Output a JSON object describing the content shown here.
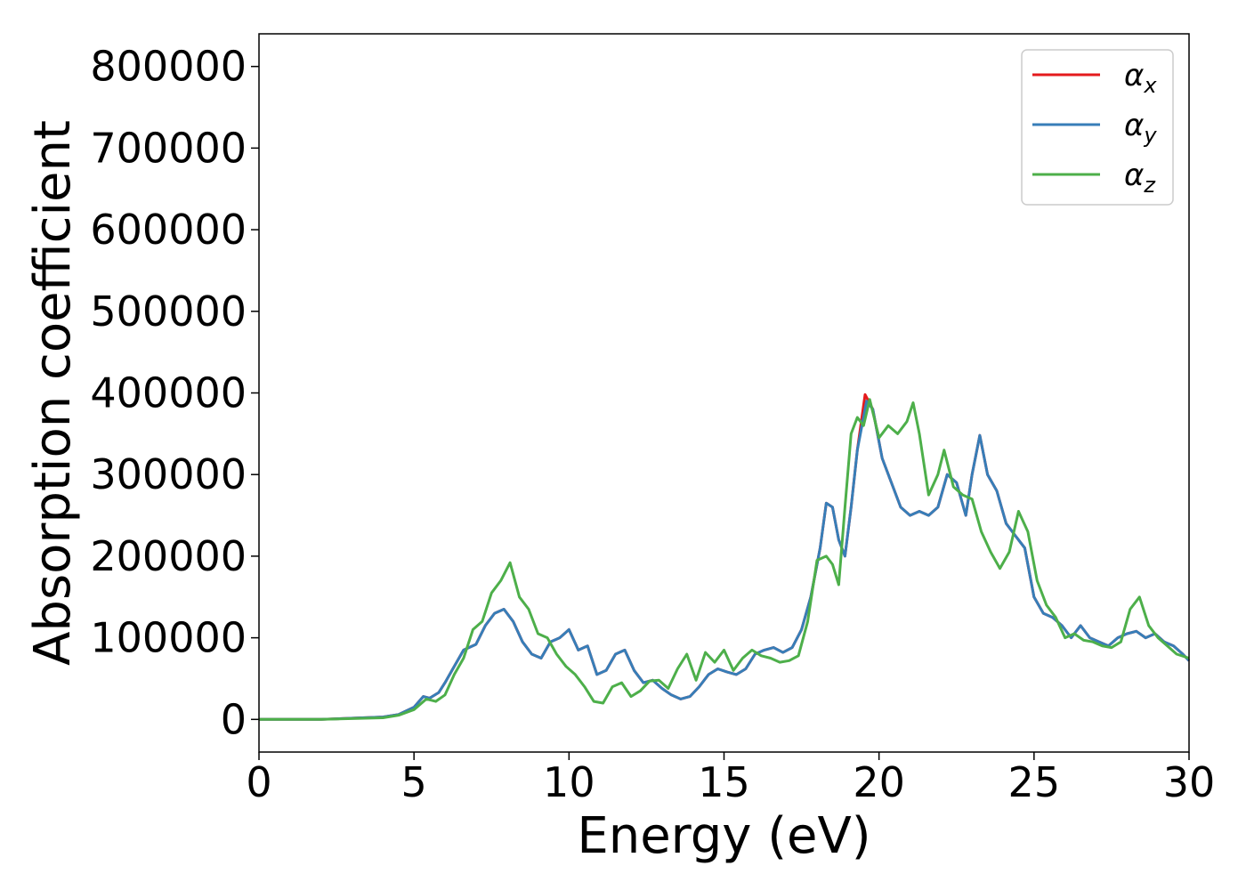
{
  "chart_data": {
    "type": "line",
    "xlabel": "Energy (eV)",
    "ylabel": "Absorption coefficient",
    "xlim": [
      0,
      30
    ],
    "ylim": [
      -40000,
      840000
    ],
    "xticks": [
      0,
      5,
      10,
      15,
      20,
      25,
      30
    ],
    "xtick_labels": [
      "0",
      "5",
      "10",
      "15",
      "20",
      "25",
      "30"
    ],
    "yticks": [
      0,
      100000,
      200000,
      300000,
      400000,
      500000,
      600000,
      700000,
      800000
    ],
    "ytick_labels": [
      "0",
      "100000",
      "200000",
      "300000",
      "400000",
      "500000",
      "600000",
      "700000",
      "800000"
    ],
    "grid": false,
    "legend_position": "top-right",
    "series": [
      {
        "name": "α_x",
        "legend_base": "α",
        "legend_sub": "x",
        "color": "#e41a1c",
        "x": [
          0,
          2,
          4,
          4.5,
          5,
          5.3,
          5.5,
          5.8,
          6,
          6.3,
          6.6,
          7,
          7.3,
          7.6,
          7.9,
          8.2,
          8.5,
          8.8,
          9.1,
          9.4,
          9.7,
          10,
          10.3,
          10.6,
          10.9,
          11.2,
          11.5,
          11.8,
          12.1,
          12.4,
          12.7,
          13,
          13.3,
          13.6,
          13.9,
          14.2,
          14.5,
          14.8,
          15.1,
          15.4,
          15.7,
          16,
          16.3,
          16.6,
          16.9,
          17.2,
          17.5,
          17.8,
          18.1,
          18.3,
          18.5,
          18.7,
          18.9,
          19.1,
          19.3,
          19.55,
          19.8,
          20.1,
          20.4,
          20.7,
          21,
          21.3,
          21.6,
          21.9,
          22.2,
          22.5,
          22.8,
          23.0,
          23.25,
          23.5,
          23.8,
          24.1,
          24.4,
          24.7,
          25,
          25.3,
          25.6,
          25.9,
          26.2,
          26.5,
          26.8,
          27.1,
          27.4,
          27.7,
          28,
          28.3,
          28.6,
          28.9,
          29.2,
          29.5,
          29.8,
          30
        ],
        "y": [
          0,
          0,
          3000,
          6000,
          15000,
          28000,
          26000,
          33000,
          45000,
          65000,
          85000,
          92000,
          115000,
          130000,
          135000,
          120000,
          95000,
          80000,
          75000,
          95000,
          100000,
          110000,
          85000,
          90000,
          55000,
          60000,
          80000,
          85000,
          60000,
          45000,
          48000,
          38000,
          30000,
          25000,
          28000,
          40000,
          55000,
          62000,
          58000,
          55000,
          62000,
          80000,
          85000,
          88000,
          82000,
          88000,
          110000,
          150000,
          210000,
          265000,
          260000,
          220000,
          200000,
          260000,
          330000,
          398000,
          380000,
          320000,
          290000,
          260000,
          250000,
          255000,
          250000,
          260000,
          300000,
          290000,
          250000,
          300000,
          348000,
          300000,
          280000,
          240000,
          225000,
          210000,
          150000,
          130000,
          125000,
          115000,
          100000,
          115000,
          100000,
          95000,
          90000,
          100000,
          105000,
          108000,
          100000,
          105000,
          95000,
          90000,
          80000,
          72000
        ]
      },
      {
        "name": "α_y",
        "legend_base": "α",
        "legend_sub": "y",
        "color": "#377eb8",
        "x": [
          0,
          2,
          4,
          4.5,
          5,
          5.3,
          5.5,
          5.8,
          6,
          6.3,
          6.6,
          7,
          7.3,
          7.6,
          7.9,
          8.2,
          8.5,
          8.8,
          9.1,
          9.4,
          9.7,
          10,
          10.3,
          10.6,
          10.9,
          11.2,
          11.5,
          11.8,
          12.1,
          12.4,
          12.7,
          13,
          13.3,
          13.6,
          13.9,
          14.2,
          14.5,
          14.8,
          15.1,
          15.4,
          15.7,
          16,
          16.3,
          16.6,
          16.9,
          17.2,
          17.5,
          17.8,
          18.1,
          18.3,
          18.5,
          18.7,
          18.9,
          19.1,
          19.3,
          19.6,
          19.8,
          20.1,
          20.4,
          20.7,
          21,
          21.3,
          21.6,
          21.9,
          22.2,
          22.5,
          22.8,
          23.0,
          23.25,
          23.5,
          23.8,
          24.1,
          24.4,
          24.7,
          25,
          25.3,
          25.6,
          25.9,
          26.2,
          26.5,
          26.8,
          27.1,
          27.4,
          27.7,
          28,
          28.3,
          28.6,
          28.9,
          29.2,
          29.5,
          29.8,
          30
        ],
        "y": [
          0,
          0,
          3000,
          6000,
          15000,
          28000,
          26000,
          33000,
          45000,
          65000,
          85000,
          92000,
          115000,
          130000,
          135000,
          120000,
          95000,
          80000,
          75000,
          95000,
          100000,
          110000,
          85000,
          90000,
          55000,
          60000,
          80000,
          85000,
          60000,
          45000,
          48000,
          38000,
          30000,
          25000,
          28000,
          40000,
          55000,
          62000,
          58000,
          55000,
          62000,
          80000,
          85000,
          88000,
          82000,
          88000,
          110000,
          150000,
          210000,
          265000,
          260000,
          220000,
          200000,
          260000,
          330000,
          390000,
          380000,
          320000,
          290000,
          260000,
          250000,
          255000,
          250000,
          260000,
          300000,
          290000,
          250000,
          300000,
          348000,
          300000,
          280000,
          240000,
          225000,
          210000,
          150000,
          130000,
          125000,
          115000,
          100000,
          115000,
          100000,
          95000,
          90000,
          100000,
          105000,
          108000,
          100000,
          105000,
          95000,
          90000,
          80000,
          72000
        ]
      },
      {
        "name": "α_z",
        "legend_base": "α",
        "legend_sub": "z",
        "color": "#4daf4a",
        "x": [
          0,
          2,
          4,
          4.5,
          5,
          5.4,
          5.7,
          6,
          6.3,
          6.6,
          6.9,
          7.2,
          7.5,
          7.8,
          8.1,
          8.4,
          8.7,
          9,
          9.3,
          9.6,
          9.9,
          10.2,
          10.5,
          10.8,
          11.1,
          11.4,
          11.7,
          12,
          12.3,
          12.6,
          12.9,
          13.2,
          13.5,
          13.8,
          14.1,
          14.4,
          14.7,
          15,
          15.3,
          15.6,
          15.9,
          16.2,
          16.5,
          16.8,
          17.1,
          17.4,
          17.7,
          18,
          18.3,
          18.5,
          18.7,
          18.9,
          19.1,
          19.3,
          19.5,
          19.7,
          20,
          20.3,
          20.6,
          20.9,
          21.1,
          21.3,
          21.6,
          21.9,
          22.1,
          22.4,
          22.7,
          23,
          23.3,
          23.6,
          23.9,
          24.2,
          24.5,
          24.8,
          25.1,
          25.4,
          25.7,
          26,
          26.3,
          26.6,
          26.9,
          27.2,
          27.5,
          27.8,
          28.1,
          28.4,
          28.7,
          29,
          29.3,
          29.6,
          30
        ],
        "y": [
          0,
          0,
          2000,
          5000,
          12000,
          25000,
          22000,
          30000,
          55000,
          75000,
          110000,
          120000,
          155000,
          170000,
          192000,
          150000,
          135000,
          105000,
          100000,
          80000,
          65000,
          55000,
          40000,
          22000,
          20000,
          40000,
          45000,
          28000,
          35000,
          47000,
          48000,
          38000,
          62000,
          80000,
          48000,
          82000,
          70000,
          85000,
          60000,
          75000,
          85000,
          78000,
          75000,
          70000,
          72000,
          78000,
          120000,
          195000,
          200000,
          190000,
          165000,
          260000,
          350000,
          370000,
          360000,
          392000,
          345000,
          360000,
          350000,
          365000,
          388000,
          350000,
          275000,
          300000,
          330000,
          285000,
          275000,
          270000,
          230000,
          205000,
          185000,
          205000,
          255000,
          230000,
          170000,
          140000,
          125000,
          100000,
          105000,
          97000,
          95000,
          90000,
          88000,
          95000,
          135000,
          150000,
          115000,
          100000,
          90000,
          80000,
          75000
        ]
      }
    ]
  }
}
